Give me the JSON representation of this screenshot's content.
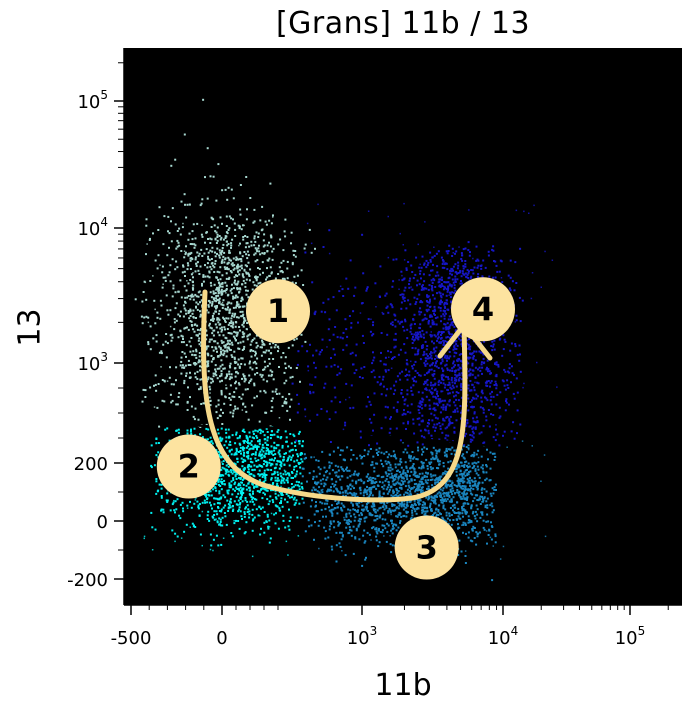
{
  "chart_data": {
    "type": "scatter",
    "title": "[Grans] 11b / 13",
    "xlabel": "11b",
    "ylabel": "13",
    "xscale": "biexponential",
    "yscale": "biexponential",
    "x_ticks": [
      {
        "value": -500,
        "base": "-500",
        "exp": ""
      },
      {
        "value": 0,
        "base": "0",
        "exp": ""
      },
      {
        "value": 1000,
        "base": "10",
        "exp": "3"
      },
      {
        "value": 10000,
        "base": "10",
        "exp": "4"
      },
      {
        "value": 100000,
        "base": "10",
        "exp": "5"
      }
    ],
    "y_ticks": [
      {
        "value": -200,
        "base": "-200",
        "exp": ""
      },
      {
        "value": 0,
        "base": "0",
        "exp": ""
      },
      {
        "value": 200,
        "base": "200",
        "exp": ""
      },
      {
        "value": 1000,
        "base": "10",
        "exp": "3"
      },
      {
        "value": 10000,
        "base": "10",
        "exp": "4"
      },
      {
        "value": 100000,
        "base": "10",
        "exp": "5"
      }
    ],
    "background_color": "#000000",
    "populations": [
      {
        "id": 1,
        "color": "#a7d8d0",
        "x_range": [
          -300,
          300
        ],
        "y_range": [
          300,
          10000
        ]
      },
      {
        "id": 2,
        "color": "#00f0f0",
        "x_range": [
          -300,
          400
        ],
        "y_range": [
          -100,
          300
        ]
      },
      {
        "id": 3,
        "color": "#1a86c0",
        "x_range": [
          400,
          9000
        ],
        "y_range": [
          -200,
          250
        ]
      },
      {
        "id": 4,
        "color": "#1616c8",
        "x_range": [
          2000,
          9000
        ],
        "y_range": [
          250,
          5000
        ]
      }
    ],
    "markers": [
      {
        "label": "1",
        "x": 400,
        "y": 1500
      },
      {
        "label": "2",
        "x": -100,
        "y": 50
      },
      {
        "label": "3",
        "x": 3500,
        "y": -50
      },
      {
        "label": "4",
        "x": 10000,
        "y": 2500
      }
    ],
    "trajectory_color": "#f6d98a",
    "marker_fill": "#fde3a0"
  }
}
